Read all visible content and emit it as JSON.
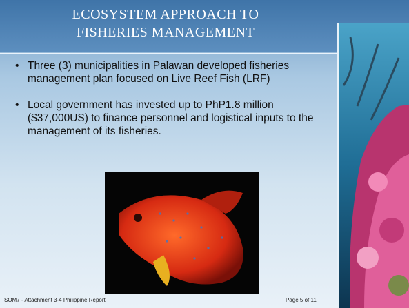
{
  "title": {
    "line1": "ECOSYSTEM APPROACH TO",
    "line2": "FISHERIES MANAGEMENT"
  },
  "bullets": [
    "Three (3) municipalities in Palawan developed fisheries management plan focused on Live Reef Fish (LRF)",
    "Local government has invested up to PhP1.8 million ($37,000US) to finance personnel and logistical inputs to the management of its fisheries."
  ],
  "footer": {
    "left": "SOM7 - Attachment 3-4 Philippine Report",
    "right": "Page 5 of 11"
  }
}
